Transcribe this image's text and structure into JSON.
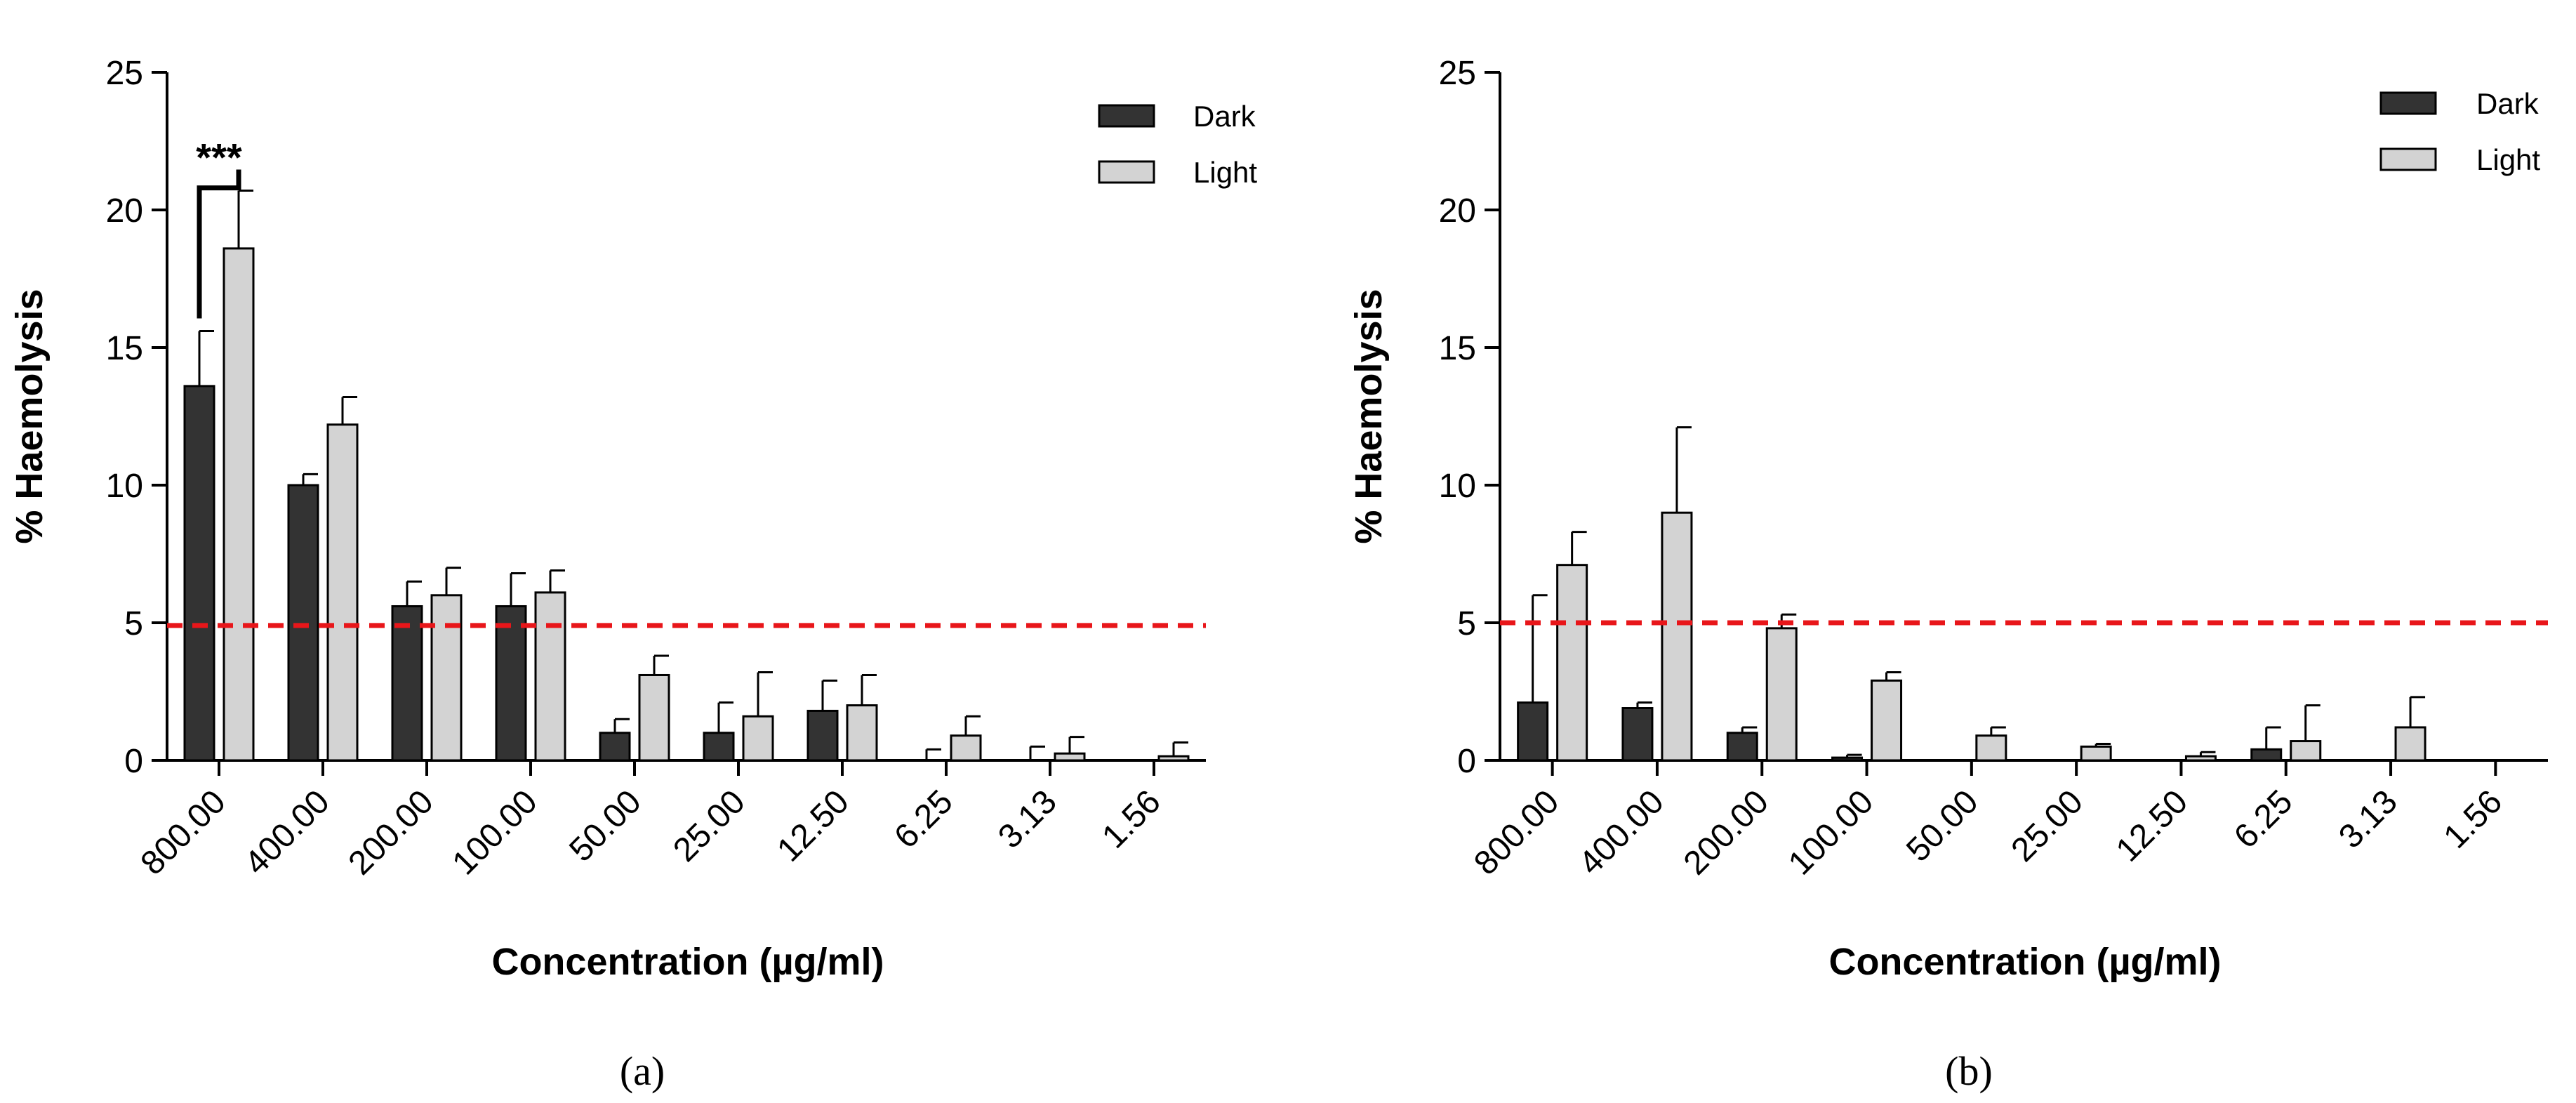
{
  "chart_data": [
    {
      "panel": "a",
      "type": "bar",
      "xlabel": "Concentration (µg/ml)",
      "ylabel": "% Haemolysis",
      "ylim": [
        0,
        25
      ],
      "yticks": [
        0,
        5,
        10,
        15,
        20,
        25
      ],
      "categories": [
        "800.00",
        "400.00",
        "200.00",
        "100.00",
        "50.00",
        "25.00",
        "12.50",
        "6.25",
        "3.13",
        "1.56"
      ],
      "series": [
        {
          "name": "Dark",
          "color": "#333333",
          "values": [
            13.6,
            10.0,
            5.6,
            5.6,
            1.0,
            1.0,
            1.8,
            0.0,
            0.0,
            0.0
          ],
          "errors": [
            2.0,
            0.4,
            0.9,
            1.2,
            0.5,
            1.1,
            1.1,
            0.4,
            0.5,
            0.0
          ]
        },
        {
          "name": "Light",
          "color": "#d3d3d3",
          "values": [
            18.6,
            12.2,
            6.0,
            6.1,
            3.1,
            1.6,
            2.0,
            0.9,
            0.25,
            0.15
          ],
          "errors": [
            2.1,
            1.0,
            1.0,
            0.8,
            0.7,
            1.6,
            1.1,
            0.7,
            0.6,
            0.5
          ]
        }
      ],
      "threshold": {
        "value": 4.9,
        "color": "#e8161a",
        "style": "dashed"
      },
      "significance": {
        "label": "***",
        "category": "800.00"
      },
      "legend": {
        "position": "top-right",
        "entries": [
          "Dark",
          "Light"
        ]
      }
    },
    {
      "panel": "b",
      "type": "bar",
      "xlabel": "Concentration (µg/ml)",
      "ylabel": "% Haemolysis",
      "ylim": [
        0,
        25
      ],
      "yticks": [
        0,
        5,
        10,
        15,
        20,
        25
      ],
      "categories": [
        "800.00",
        "400.00",
        "200.00",
        "100.00",
        "50.00",
        "25.00",
        "12.50",
        "6.25",
        "3.13",
        "1.56"
      ],
      "series": [
        {
          "name": "Dark",
          "color": "#333333",
          "values": [
            2.1,
            1.9,
            1.0,
            0.1,
            0.0,
            0.0,
            0.0,
            0.4,
            0.0,
            0.0
          ],
          "errors": [
            3.9,
            0.2,
            0.2,
            0.1,
            0.0,
            0.0,
            0.0,
            0.8,
            0.0,
            0.0
          ]
        },
        {
          "name": "Light",
          "color": "#d3d3d3",
          "values": [
            7.1,
            9.0,
            4.8,
            2.9,
            0.9,
            0.5,
            0.15,
            0.7,
            1.2,
            0.0
          ],
          "errors": [
            1.2,
            3.1,
            0.5,
            0.3,
            0.3,
            0.1,
            0.15,
            1.3,
            1.1,
            0.0
          ]
        }
      ],
      "threshold": {
        "value": 5.0,
        "color": "#e8161a",
        "style": "dashed"
      },
      "legend": {
        "position": "top-right",
        "entries": [
          "Dark",
          "Light"
        ]
      }
    }
  ],
  "panel_labels": [
    "(a)",
    "(b)"
  ]
}
